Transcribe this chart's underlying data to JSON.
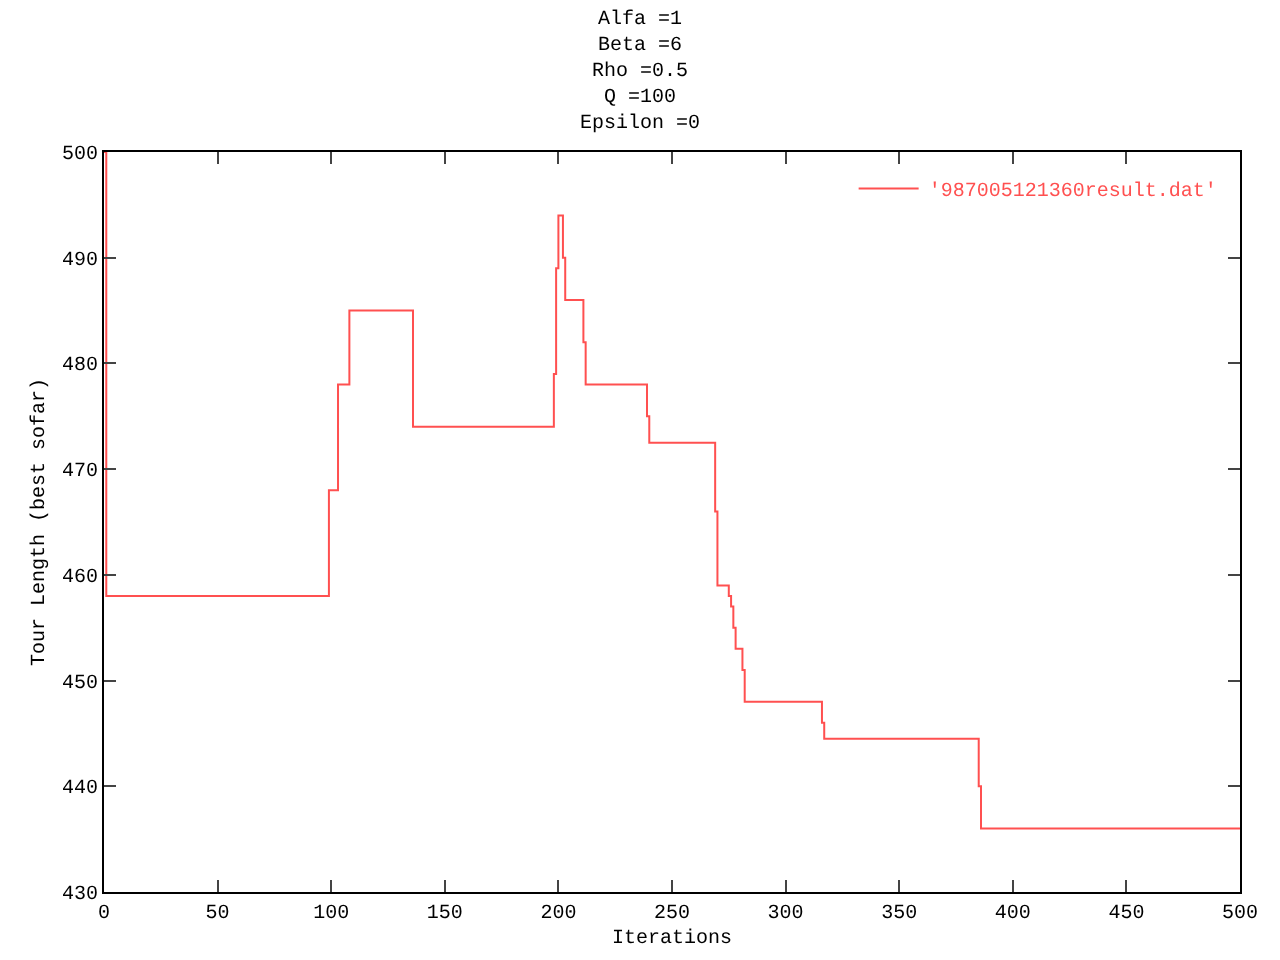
{
  "chart_data": {
    "type": "step",
    "title": "Alfa =1\nBeta =6\nRho =0.5\nQ =100\nEpsilon =0",
    "xlabel": "Iterations",
    "ylabel": "Tour Length (best sofar)",
    "x": [
      0,
      1,
      99,
      103,
      108,
      136,
      198,
      199,
      200,
      202,
      203,
      211,
      212,
      239,
      240,
      269,
      270,
      275,
      276,
      277,
      278,
      281,
      282,
      316,
      317,
      385,
      386,
      500
    ],
    "series": [
      {
        "name": "'987005121360result.dat'",
        "color": "#ff5050",
        "values": [
          500,
          458,
          468,
          478,
          485,
          474,
          479,
          489,
          494,
          490,
          486,
          482,
          478,
          475,
          472.5,
          466,
          459,
          458,
          457,
          455,
          453,
          451,
          448,
          446,
          444.5,
          440,
          436,
          436
        ]
      }
    ],
    "xlim": [
      0,
      500
    ],
    "xticks": [
      0,
      50,
      100,
      150,
      200,
      250,
      300,
      350,
      400,
      450,
      500
    ],
    "ylim": [
      430,
      500
    ],
    "yticks": [
      430,
      440,
      450,
      460,
      470,
      480,
      490,
      500
    ],
    "grid": false,
    "legend": "top right"
  }
}
